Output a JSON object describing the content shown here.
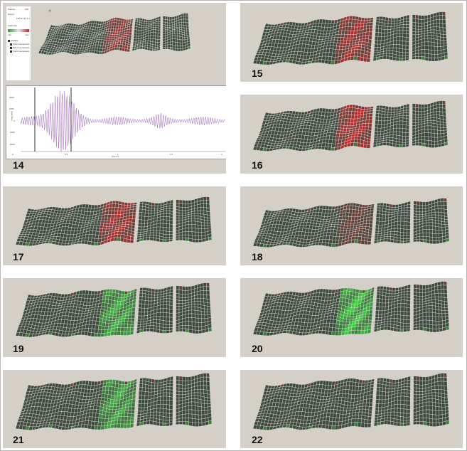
{
  "figure": {
    "panels": [
      {
        "label": "14",
        "highlight": "red",
        "intensity": 0.75
      },
      {
        "label": "15",
        "highlight": "red",
        "intensity": 0.85
      },
      {
        "label": "16",
        "highlight": "red",
        "intensity": 1.0
      },
      {
        "label": "17",
        "highlight": "red",
        "intensity": 0.9
      },
      {
        "label": "18",
        "highlight": "red",
        "intensity": 0.35
      },
      {
        "label": "19",
        "highlight": "green",
        "intensity": 0.8
      },
      {
        "label": "20",
        "highlight": "green",
        "intensity": 1.0
      },
      {
        "label": "21",
        "highlight": "green",
        "intensity": 0.75
      },
      {
        "label": "22",
        "highlight": "none",
        "intensity": 0.0
      }
    ]
  },
  "colors": {
    "panel_bg": "#d4d0c8",
    "mesh_base": "#3e4a3e",
    "red_highlight": "#c8282a",
    "green_highlight": "#3fd43f",
    "signal": "#9a5fb8"
  },
  "legend": {
    "row1": "Frames",
    "row1_value": "100",
    "row2": "Speed",
    "toolbar": "100 1H 1V 1.1",
    "section": "Colormap",
    "range_low": "min",
    "range_high": "max",
    "layers": [
      "Surface",
      "Point Component",
      "Point Component",
      "Point Component"
    ]
  },
  "plot": {
    "ylabel": "mag [m/s]",
    "xlabel": "time [s]",
    "x_ticks": [
      "0",
      "0.5",
      "1",
      "1.5",
      "2"
    ],
    "y_ticks": [
      "2000",
      "1000",
      "0",
      "-1000",
      "-2000"
    ]
  }
}
